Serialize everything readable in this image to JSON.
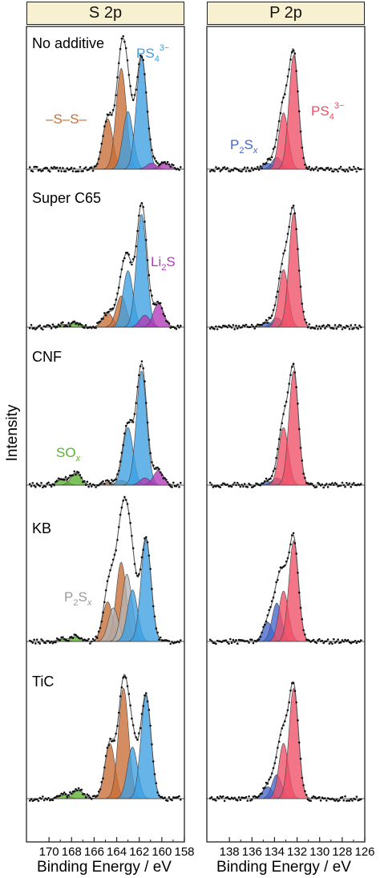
{
  "headers": {
    "left": "S 2p",
    "right": "P 2p"
  },
  "axis": {
    "ylabel": "Intensity",
    "xlabel_left": "Binding Energy / eV",
    "xlabel_right": "Binding Energy / eV"
  },
  "colors": {
    "sulfide_S": "#c86d35",
    "PS4_blue": "#3c9fe3",
    "Li2S_magenta": "#b23ab8",
    "SOx_green": "#58b22c",
    "P2Sx_gray": "#b3b3b3",
    "PS4_pink": "#ee4f66",
    "P2Sx_blue": "#4466cc",
    "envelope": "#555555",
    "data_points": "#111111"
  },
  "chart_data": [
    {
      "type": "line",
      "title": "S 2p",
      "xlabel": "Binding Energy / eV",
      "ylabel": "Intensity",
      "xlim": [
        172,
        158
      ],
      "xticks": [
        170,
        168,
        166,
        164,
        162,
        160,
        158
      ],
      "xtick_labels": [
        "170",
        "168",
        "166",
        "164",
        "162",
        "160",
        "158"
      ],
      "yticks": false,
      "rows": [
        {
          "sample": "No additive",
          "scale": 1.0,
          "annotations": [
            {
              "text": "–S–S–",
              "color": "#c86d35"
            },
            {
              "text": "PS4 3−",
              "color": "#3c9fe3"
            }
          ],
          "components": [
            {
              "species": "–S–S–",
              "color": "#c86d35",
              "peaks": [
                {
                  "center": 164.8,
                  "height": 0.42
                },
                {
                  "center": 163.6,
                  "height": 0.84
                }
              ]
            },
            {
              "species": "PS4 3−",
              "color": "#3c9fe3",
              "peaks": [
                {
                  "center": 163.0,
                  "height": 0.48
                },
                {
                  "center": 161.8,
                  "height": 0.93
                }
              ]
            },
            {
              "species": "Li2S",
              "color": "#b23ab8",
              "peaks": [
                {
                  "center": 160.9,
                  "height": 0.05
                },
                {
                  "center": 159.7,
                  "height": 0.05
                }
              ]
            }
          ]
        },
        {
          "sample": "Super C65",
          "scale": 1.0,
          "annotations": [
            {
              "text": "Li2S",
              "color": "#b23ab8"
            }
          ],
          "components": [
            {
              "species": "SOx",
              "color": "#58b22c",
              "peaks": [
                {
                  "center": 168.8,
                  "height": 0.02
                },
                {
                  "center": 167.6,
                  "height": 0.04
                }
              ]
            },
            {
              "species": "–S–S–",
              "color": "#c86d35",
              "peaks": [
                {
                  "center": 164.8,
                  "height": 0.12
                },
                {
                  "center": 163.6,
                  "height": 0.26
                }
              ]
            },
            {
              "species": "PS4 3−",
              "color": "#3c9fe3",
              "peaks": [
                {
                  "center": 163.0,
                  "height": 0.47
                },
                {
                  "center": 161.8,
                  "height": 0.94
                }
              ]
            },
            {
              "species": "Li2S",
              "color": "#b23ab8",
              "peaks": [
                {
                  "center": 161.5,
                  "height": 0.1
                },
                {
                  "center": 160.3,
                  "height": 0.2
                }
              ]
            }
          ]
        },
        {
          "sample": "CNF",
          "scale": 1.0,
          "annotations": [
            {
              "text": "SOx",
              "color": "#58b22c"
            }
          ],
          "components": [
            {
              "species": "SOx",
              "color": "#58b22c",
              "peaks": [
                {
                  "center": 168.8,
                  "height": 0.05
                },
                {
                  "center": 167.6,
                  "height": 0.1
                }
              ]
            },
            {
              "species": "–S–S–",
              "color": "#c86d35",
              "peaks": [
                {
                  "center": 164.8,
                  "height": 0.02
                },
                {
                  "center": 163.6,
                  "height": 0.04
                }
              ]
            },
            {
              "species": "PS4 3−",
              "color": "#3c9fe3",
              "peaks": [
                {
                  "center": 163.0,
                  "height": 0.48
                },
                {
                  "center": 161.8,
                  "height": 0.95
                }
              ]
            },
            {
              "species": "Li2S",
              "color": "#b23ab8",
              "peaks": [
                {
                  "center": 161.5,
                  "height": 0.06
                },
                {
                  "center": 160.3,
                  "height": 0.12
                }
              ]
            }
          ]
        },
        {
          "sample": "KB",
          "scale": 1.0,
          "annotations": [
            {
              "text": "P2Sx",
              "color": "#b3b3b3"
            }
          ],
          "components": [
            {
              "species": "SOx",
              "color": "#58b22c",
              "peaks": [
                {
                  "center": 168.8,
                  "height": 0.02
                },
                {
                  "center": 167.6,
                  "height": 0.04
                }
              ]
            },
            {
              "species": "–S–S–",
              "color": "#c86d35",
              "peaks": [
                {
                  "center": 164.8,
                  "height": 0.33
                },
                {
                  "center": 163.6,
                  "height": 0.66
                }
              ]
            },
            {
              "species": "P2Sx",
              "color": "#b3b3b3",
              "peaks": [
                {
                  "center": 164.3,
                  "height": 0.28
                },
                {
                  "center": 163.1,
                  "height": 0.56
                }
              ]
            },
            {
              "species": "PS4 3−",
              "color": "#3c9fe3",
              "peaks": [
                {
                  "center": 162.6,
                  "height": 0.43
                },
                {
                  "center": 161.4,
                  "height": 0.85
                }
              ]
            }
          ]
        },
        {
          "sample": "TiC",
          "scale": 1.0,
          "annotations": [],
          "components": [
            {
              "species": "SOx",
              "color": "#58b22c",
              "peaks": [
                {
                  "center": 168.6,
                  "height": 0.03
                },
                {
                  "center": 167.4,
                  "height": 0.07
                }
              ]
            },
            {
              "species": "–S–S–",
              "color": "#c86d35",
              "peaks": [
                {
                  "center": 164.6,
                  "height": 0.46
                },
                {
                  "center": 163.4,
                  "height": 0.92
                }
              ]
            },
            {
              "species": "PS4 3−",
              "color": "#3c9fe3",
              "peaks": [
                {
                  "center": 162.6,
                  "height": 0.43
                },
                {
                  "center": 161.4,
                  "height": 0.86
                }
              ]
            }
          ]
        }
      ]
    },
    {
      "type": "line",
      "title": "P 2p",
      "xlabel": "Binding Energy / eV",
      "ylabel": "Intensity",
      "xlim": [
        140,
        126
      ],
      "xticks": [
        138,
        136,
        134,
        132,
        130,
        128,
        126
      ],
      "xtick_labels": [
        "138",
        "136",
        "134",
        "132",
        "130",
        "128",
        "126"
      ],
      "yticks": false,
      "rows": [
        {
          "sample": "No additive",
          "scale": 1.0,
          "annotations": [
            {
              "text": "P2Sx",
              "color": "#4466cc"
            },
            {
              "text": "PS4 3−",
              "color": "#ee4f66"
            }
          ],
          "components": [
            {
              "species": "P2Sx",
              "color": "#4466cc",
              "peaks": [
                {
                  "center": 134.6,
                  "height": 0.05
                },
                {
                  "center": 133.8,
                  "height": 0.1
                }
              ]
            },
            {
              "species": "PS4 3−",
              "color": "#ee4f66",
              "peaks": [
                {
                  "center": 133.2,
                  "height": 0.47
                },
                {
                  "center": 132.3,
                  "height": 0.95
                }
              ]
            }
          ]
        },
        {
          "sample": "Super C65",
          "scale": 1.0,
          "annotations": [],
          "components": [
            {
              "species": "P2Sx",
              "color": "#4466cc",
              "peaks": [
                {
                  "center": 134.6,
                  "height": 0.04
                },
                {
                  "center": 133.8,
                  "height": 0.08
                }
              ]
            },
            {
              "species": "PS4 3−",
              "color": "#ee4f66",
              "peaks": [
                {
                  "center": 133.2,
                  "height": 0.48
                },
                {
                  "center": 132.3,
                  "height": 0.95
                }
              ]
            }
          ]
        },
        {
          "sample": "CNF",
          "scale": 1.0,
          "annotations": [],
          "components": [
            {
              "species": "P2Sx",
              "color": "#4466cc",
              "peaks": [
                {
                  "center": 134.6,
                  "height": 0.03
                },
                {
                  "center": 133.8,
                  "height": 0.06
                }
              ]
            },
            {
              "species": "PS4 3−",
              "color": "#ee4f66",
              "peaks": [
                {
                  "center": 133.2,
                  "height": 0.48
                },
                {
                  "center": 132.3,
                  "height": 0.95
                }
              ]
            }
          ]
        },
        {
          "sample": "KB",
          "scale": 1.0,
          "annotations": [],
          "components": [
            {
              "species": "P2Sx",
              "color": "#4466cc",
              "peaks": [
                {
                  "center": 134.6,
                  "height": 0.16
                },
                {
                  "center": 133.8,
                  "height": 0.32
                }
              ]
            },
            {
              "species": "PS4 3−",
              "color": "#ee4f66",
              "peaks": [
                {
                  "center": 133.2,
                  "height": 0.42
                },
                {
                  "center": 132.3,
                  "height": 0.84
                }
              ]
            }
          ]
        },
        {
          "sample": "TiC",
          "scale": 1.0,
          "annotations": [],
          "components": [
            {
              "species": "P2Sx",
              "color": "#4466cc",
              "peaks": [
                {
                  "center": 134.6,
                  "height": 0.1
                },
                {
                  "center": 133.8,
                  "height": 0.2
                }
              ]
            },
            {
              "species": "PS4 3−",
              "color": "#ee4f66",
              "peaks": [
                {
                  "center": 133.2,
                  "height": 0.46
                },
                {
                  "center": 132.3,
                  "height": 0.92
                }
              ]
            }
          ]
        }
      ]
    }
  ]
}
